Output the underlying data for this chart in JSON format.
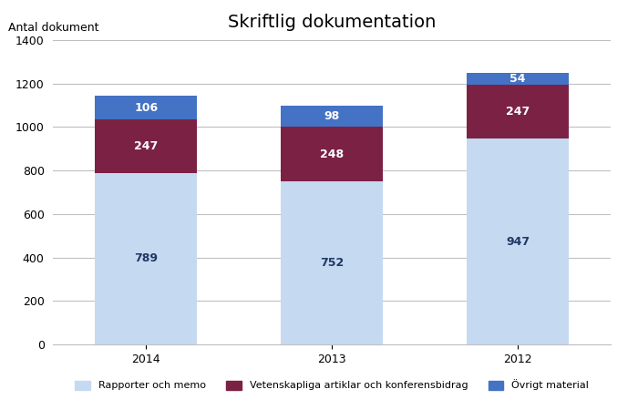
{
  "title": "Skriftlig dokumentation",
  "ylabel": "Antal dokument",
  "categories": [
    "2014",
    "2013",
    "2012"
  ],
  "series": [
    {
      "name": "Rapporter och memo",
      "values": [
        789,
        752,
        947
      ],
      "color": "#c5d9f1",
      "text_color": "#1f3864"
    },
    {
      "name": "Vetenskapliga artiklar och konferensbidrag",
      "values": [
        247,
        248,
        247
      ],
      "color": "#7b2244",
      "text_color": "#ffffff"
    },
    {
      "name": "Övrigt material",
      "values": [
        106,
        98,
        54
      ],
      "color": "#4472c4",
      "text_color": "#ffffff"
    }
  ],
  "ylim": [
    0,
    1400
  ],
  "yticks": [
    0,
    200,
    400,
    600,
    800,
    1000,
    1200,
    1400
  ],
  "bar_width": 0.55,
  "figsize": [
    7.0,
    4.5
  ],
  "dpi": 100,
  "grid_color": "#c0c0c0",
  "background_color": "#ffffff",
  "title_fontsize": 14,
  "label_fontsize": 9,
  "tick_fontsize": 9,
  "legend_fontsize": 8
}
